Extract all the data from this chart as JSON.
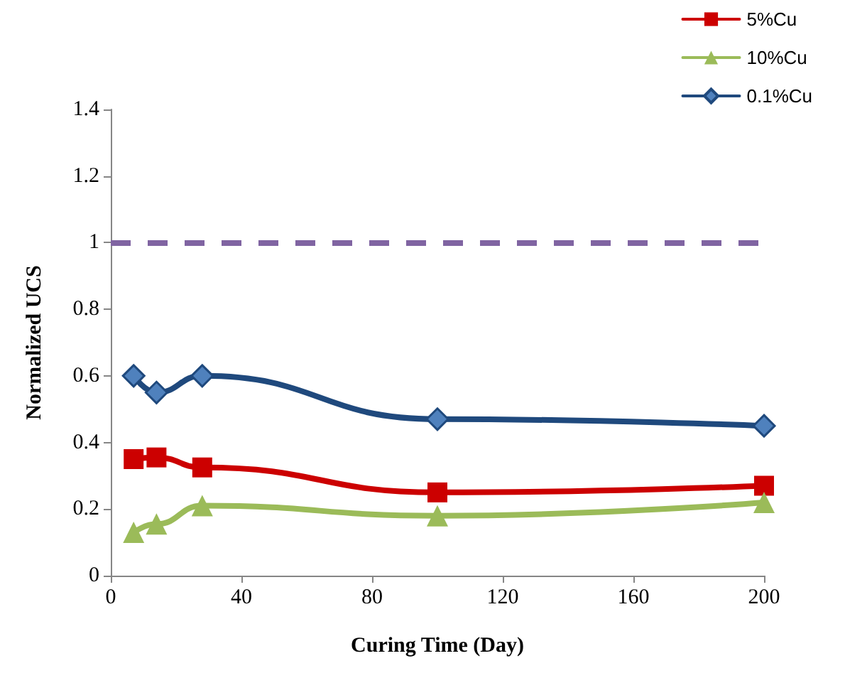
{
  "chart_data": {
    "type": "line",
    "xlabel": "Curing Time (Day)",
    "ylabel": "Normalized UCS",
    "x": [
      7,
      14,
      28,
      100,
      200
    ],
    "series": [
      {
        "name": "5%Cu",
        "color": "#cc0000",
        "marker": "square",
        "values": [
          0.35,
          0.355,
          0.325,
          0.25,
          0.27
        ]
      },
      {
        "name": "10%Cu",
        "color": "#9bbb59",
        "marker": "triangle",
        "values": [
          0.13,
          0.155,
          0.21,
          0.18,
          0.22
        ]
      },
      {
        "name": "0.1%Cu",
        "color": "#1f497d",
        "marker": "diamond",
        "values": [
          0.6,
          0.55,
          0.6,
          0.47,
          0.45
        ]
      }
    ],
    "xlim": [
      0,
      200
    ],
    "xticks": [
      0,
      40,
      80,
      120,
      160,
      200
    ],
    "ylim": [
      0,
      1.4
    ],
    "yticks": [
      0,
      0.2,
      0.4,
      0.6,
      0.8,
      1,
      1.2,
      1.4
    ],
    "ref_lines": [
      {
        "axis": "y",
        "value": 1,
        "color": "#8064a2",
        "line_style": "dashed"
      }
    ],
    "grid": false,
    "legend": "top right",
    "line_style": "solid"
  }
}
